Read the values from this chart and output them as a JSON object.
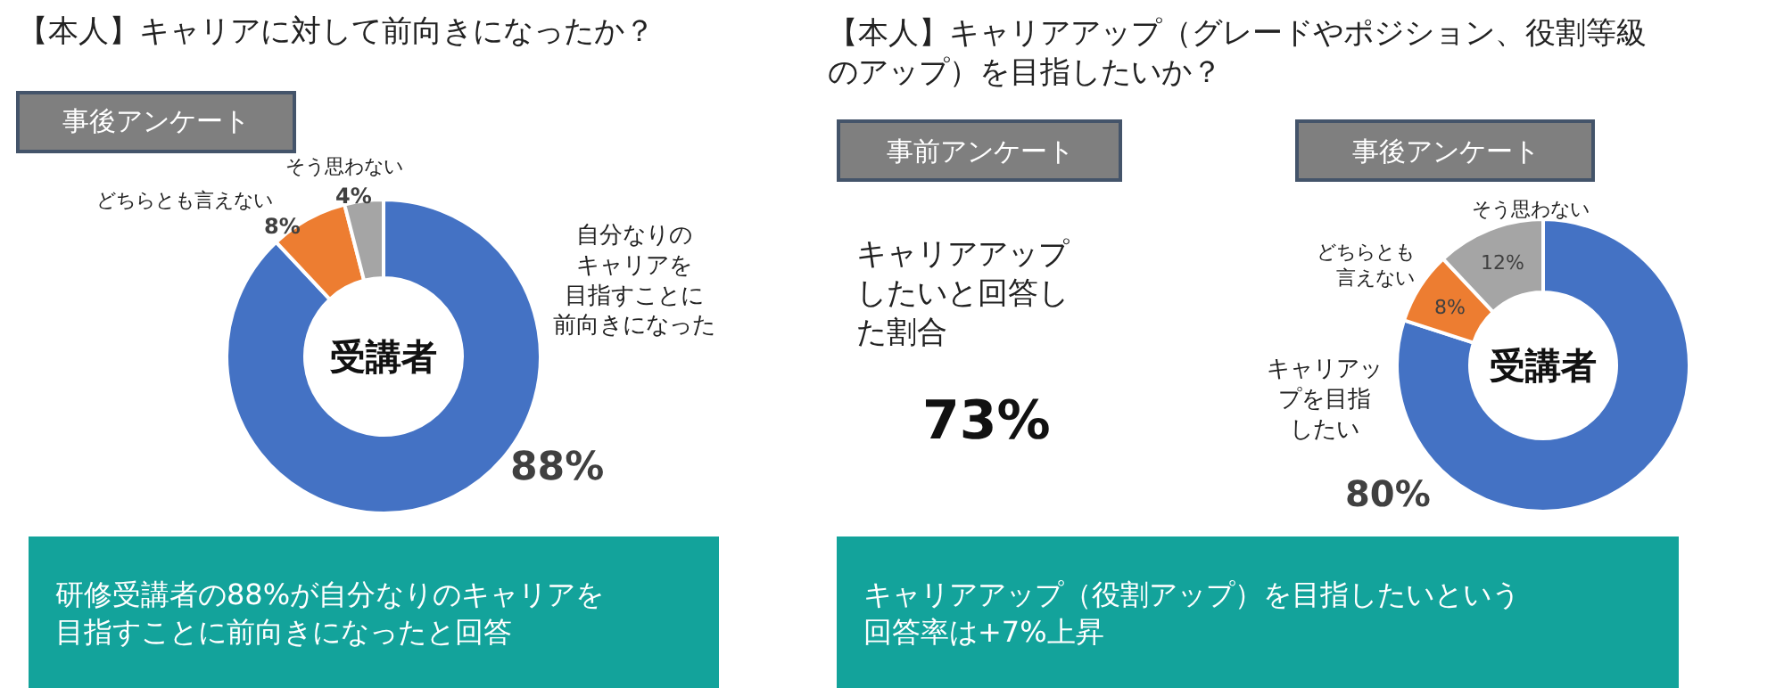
{
  "chart_data": [
    {
      "type": "donut",
      "title": "【本人】キャリアに対して前向きになったか？",
      "subtitle": "事後アンケート",
      "categories": [
        "自分なりのキャリアを目指すことに前向きになった",
        "どちらとも言えない",
        "そう思わない"
      ],
      "values": [
        88,
        8,
        4
      ],
      "colors": [
        "#4472c4",
        "#ed7d31",
        "#a5a5a5"
      ],
      "value_labels": [
        "88%",
        "8%",
        "4%"
      ],
      "annotations": [
        "受講者",
        "研修受講者の88%が自分なりのキャリアを目指すことに前向きになったと回答"
      ]
    },
    {
      "type": "other",
      "title": "【本人】キャリアアップ（グレードやポジション、役割等級のアップ）を目指したいか？",
      "subtitle": "事前アンケート",
      "annotations": [
        "キャリアアップしたいと回答した割合",
        "73%",
        "キャリアアップ（役割アップ）を目指したいという回答率は+7%上昇"
      ]
    },
    {
      "type": "donut",
      "subtitle": "事後アンケート",
      "categories": [
        "キャリアップを目指したい",
        "どちらとも言えない",
        "そう思わない"
      ],
      "values": [
        80,
        8,
        12
      ],
      "colors": [
        "#4472c4",
        "#ed7d31",
        "#a5a5a5"
      ],
      "value_labels": [
        "80%",
        "8%",
        "12%"
      ],
      "annotations": [
        "受講者"
      ]
    }
  ]
}
